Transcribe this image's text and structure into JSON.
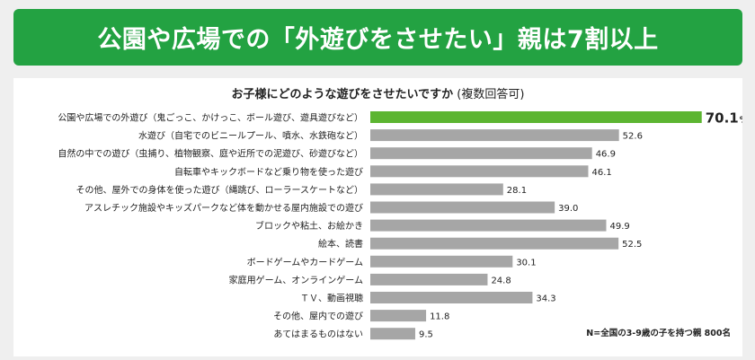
{
  "header": {
    "title": "公園や広場での「外遊びをさせたい」親は7割以上"
  },
  "chart_data": {
    "type": "bar",
    "orientation": "horizontal",
    "title": "お子様にどのような遊びをさせたいですか",
    "title_note": "(複数回答可)",
    "unit": "%",
    "xlim": [
      0,
      75
    ],
    "categories": [
      "公園や広場での外遊び（鬼ごっこ、かけっこ、ボール遊び、遊具遊びなど）",
      "水遊び（自宅でのビニールプール、噴水、水鉄砲など）",
      "自然の中での遊び（虫捕り、植物観察、庭や近所での泥遊び、砂遊びなど）",
      "自転車やキックボードなど乗り物を使った遊び",
      "その他、屋外での身体を使った遊び（縄跳び、ローラースケートなど）",
      "アスレチック施設やキッズパークなど体を動かせる屋内施設での遊び",
      "ブロックや粘土、お絵かき",
      "絵本、読書",
      "ボードゲームやカードゲーム",
      "家庭用ゲーム、オンラインゲーム",
      "ＴＶ、動画視聴",
      "その他、屋内での遊び",
      "あてはまるものはない"
    ],
    "values": [
      70.1,
      52.6,
      46.9,
      46.1,
      28.1,
      39.0,
      49.9,
      52.5,
      30.1,
      24.8,
      34.3,
      11.8,
      9.5
    ],
    "value_labels": [
      "70.1",
      "52.6",
      "46.9",
      "46.1",
      "28.1",
      "39.0",
      "49.9",
      "52.5",
      "30.1",
      "24.8",
      "34.3",
      "11.8",
      "9.5"
    ],
    "highlight_index": 0,
    "colors": {
      "highlight": "#5cb531",
      "default": "#a6a6a6",
      "header_bg": "#23a242"
    },
    "grid": false,
    "legend": "none",
    "footnote": "N=全国の3-9歳の子を持つ親 800名"
  }
}
